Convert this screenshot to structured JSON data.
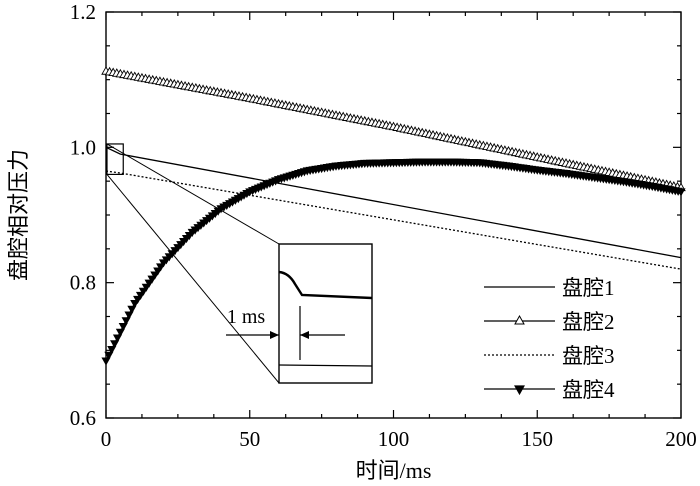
{
  "chart_data": {
    "type": "line",
    "xlabel": "时间/ms",
    "ylabel": "盘腔相对压力",
    "xlim": [
      0,
      200
    ],
    "ylim": [
      0.6,
      1.2
    ],
    "x_ticks": [
      "0",
      "50",
      "100",
      "150",
      "200"
    ],
    "y_ticks": [
      "0.6",
      "0.8",
      "1.0",
      "1.2"
    ],
    "grid": false,
    "legend_position": "bottom-right",
    "series": [
      {
        "name": "盘腔1",
        "style": "solid-thin",
        "points": [
          [
            0,
            1.0
          ],
          [
            5,
            0.99
          ],
          [
            200,
            0.837
          ]
        ]
      },
      {
        "name": "盘腔2",
        "style": "open-triangle-marker",
        "points": [
          [
            0,
            1.112
          ],
          [
            50,
            1.072
          ],
          [
            100,
            1.03
          ],
          [
            150,
            0.985
          ],
          [
            200,
            0.94
          ]
        ]
      },
      {
        "name": "盘腔3",
        "style": "dotted",
        "points": [
          [
            0,
            0.965
          ],
          [
            5,
            0.962
          ],
          [
            200,
            0.82
          ]
        ]
      },
      {
        "name": "盘腔4",
        "style": "filled-triangle-down-marker",
        "points": [
          [
            0,
            0.685
          ],
          [
            10,
            0.77
          ],
          [
            20,
            0.83
          ],
          [
            30,
            0.875
          ],
          [
            40,
            0.91
          ],
          [
            50,
            0.935
          ],
          [
            60,
            0.953
          ],
          [
            70,
            0.966
          ],
          [
            80,
            0.973
          ],
          [
            90,
            0.977
          ],
          [
            100,
            0.978
          ],
          [
            110,
            0.979
          ],
          [
            120,
            0.979
          ],
          [
            130,
            0.978
          ],
          [
            140,
            0.973
          ],
          [
            150,
            0.967
          ],
          [
            160,
            0.962
          ],
          [
            170,
            0.956
          ],
          [
            180,
            0.95
          ],
          [
            190,
            0.943
          ],
          [
            200,
            0.935
          ]
        ]
      }
    ],
    "inset": {
      "label": "1 ms",
      "zoom_region": {
        "x": [
          0,
          6
        ],
        "y": [
          0.96,
          1.005
        ]
      }
    }
  }
}
